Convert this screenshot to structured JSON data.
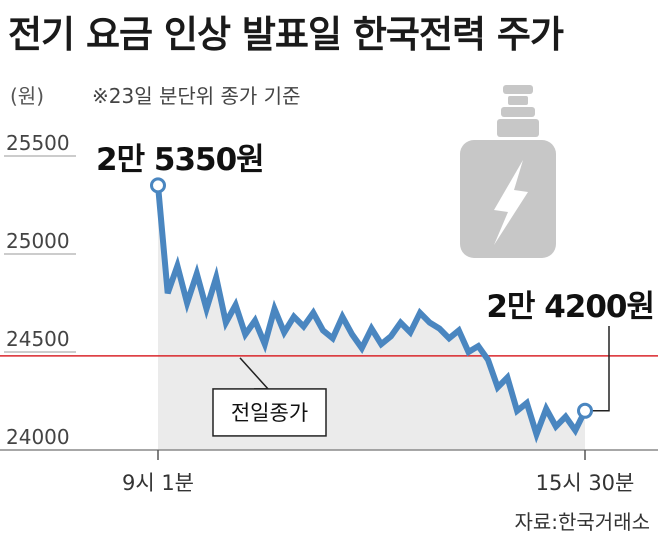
{
  "header": {
    "title": "전기 요금 인상 발표일 한국전력 주가",
    "unit": "(원)",
    "note": "※23일 분단위 종가 기준"
  },
  "footer": {
    "source": "자료:한국거래소"
  },
  "colors": {
    "line": "#4a86c0",
    "area": "#ebebeb",
    "reference": "#d9262b",
    "icon": "#c7c7c7",
    "text": "#1a1a1a"
  },
  "icons": [
    "battery-lightning-icon"
  ],
  "chart_data": {
    "type": "line",
    "title": "전기 요금 인상 발표일 한국전력 주가",
    "xlabel": "",
    "ylabel": "(원)",
    "ylim": [
      23800,
      25600
    ],
    "y_ticks": [
      24000,
      24500,
      25000,
      25500
    ],
    "y_tick_labels": [
      "24000",
      "24500",
      "25000",
      "25500"
    ],
    "x_tick_labels": [
      "9시 1분",
      "15시 30분"
    ],
    "grid": false,
    "series": [
      {
        "values": [
          25350,
          24800,
          24940,
          24750,
          24900,
          24720,
          24880,
          24650,
          24740,
          24590,
          24660,
          24540,
          24720,
          24600,
          24680,
          24630,
          24700,
          24610,
          24570,
          24680,
          24590,
          24520,
          24620,
          24540,
          24580,
          24650,
          24600,
          24700,
          24650,
          24620,
          24570,
          24610,
          24500,
          24530,
          24460,
          24320,
          24370,
          24200,
          24240,
          24080,
          24210,
          24120,
          24170,
          24100,
          24200
        ],
        "start": {
          "label": "2만 5350원",
          "value": 25350
        },
        "end": {
          "label": "2만 4200원",
          "value": 24200
        }
      }
    ],
    "reference_line": {
      "label": "전일종가",
      "value": 24480
    }
  }
}
